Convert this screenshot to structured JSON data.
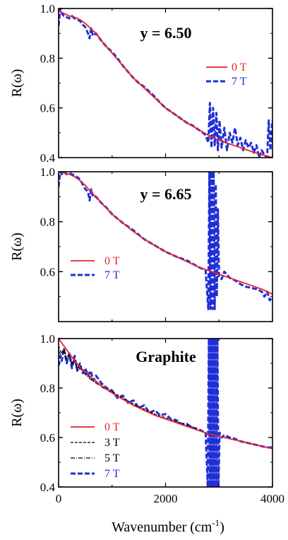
{
  "figure": {
    "xlabel": "Wavenumber (cm",
    "xlabel_sup": "-1",
    "xlabel_close": ")"
  },
  "chart_data": [
    {
      "type": "line",
      "panel_label": "y = 6.50",
      "ylabel": "R(ω)",
      "xlim": [
        0,
        4000
      ],
      "ylim": [
        0.4,
        1.0
      ],
      "yticks": [
        "0.4",
        "0.6",
        "0.8",
        "1.0"
      ],
      "xticks": [],
      "legend_placement": "right",
      "series": [
        {
          "name": "0 T",
          "color": "#e8212b",
          "style": "solid",
          "x": [
            0,
            100,
            200,
            300,
            400,
            500,
            600,
            700,
            800,
            1000,
            1200,
            1400,
            1600,
            1800,
            2000,
            2200,
            2400,
            2600,
            2800,
            3000,
            3200,
            3400,
            3600,
            3800,
            4000
          ],
          "y": [
            0.99,
            0.98,
            0.97,
            0.965,
            0.955,
            0.94,
            0.92,
            0.9,
            0.87,
            0.82,
            0.77,
            0.72,
            0.68,
            0.64,
            0.6,
            0.57,
            0.54,
            0.515,
            0.49,
            0.47,
            0.455,
            0.44,
            0.425,
            0.412,
            0.4
          ]
        },
        {
          "name": "7 T",
          "color": "#1f2fd6",
          "style": "dash",
          "x": [
            0,
            30,
            60,
            100,
            150,
            200,
            250,
            300,
            350,
            400,
            450,
            500,
            550,
            580,
            610,
            640,
            700,
            800,
            900,
            1000,
            1100,
            1200,
            1300,
            1400,
            1500,
            1600,
            1700,
            1800,
            1900,
            2000,
            2100,
            2200,
            2300,
            2400,
            2500,
            2600,
            2700,
            2750,
            2800,
            2830,
            2860,
            2890,
            2920,
            2950,
            2980,
            3010,
            3050,
            3100,
            3150,
            3200,
            3250,
            3300,
            3350,
            3400,
            3450,
            3500,
            3550,
            3600,
            3650,
            3700,
            3750,
            3800,
            3850,
            3900,
            3930,
            3960,
            4000
          ],
          "y": [
            0.93,
            1.0,
            0.98,
            0.97,
            0.965,
            0.96,
            0.97,
            0.96,
            0.955,
            0.95,
            0.935,
            0.925,
            0.9,
            0.88,
            0.92,
            0.89,
            0.9,
            0.87,
            0.845,
            0.825,
            0.8,
            0.77,
            0.745,
            0.72,
            0.7,
            0.685,
            0.665,
            0.645,
            0.62,
            0.6,
            0.585,
            0.57,
            0.555,
            0.54,
            0.53,
            0.515,
            0.5,
            0.49,
            0.46,
            0.62,
            0.44,
            0.6,
            0.45,
            0.58,
            0.43,
            0.55,
            0.44,
            0.52,
            0.43,
            0.5,
            0.46,
            0.52,
            0.45,
            0.48,
            0.43,
            0.47,
            0.44,
            0.46,
            0.42,
            0.45,
            0.4,
            0.43,
            0.41,
            0.4,
            0.55,
            0.43,
            0.55
          ]
        }
      ]
    },
    {
      "type": "line",
      "panel_label": "y = 6.65",
      "ylabel": "R(ω)",
      "xlim": [
        0,
        4000
      ],
      "ylim": [
        0.4,
        1.0
      ],
      "yticks": [
        "0.6",
        "0.8",
        "1.0"
      ],
      "xticks": [],
      "legend_placement": "bottom-left",
      "series": [
        {
          "name": "0 T",
          "color": "#e8212b",
          "style": "solid",
          "x": [
            0,
            100,
            200,
            300,
            400,
            500,
            600,
            700,
            800,
            1000,
            1200,
            1400,
            1600,
            1800,
            2000,
            2200,
            2400,
            2600,
            2800,
            3000,
            3200,
            3400,
            3600,
            3800,
            4000
          ],
          "y": [
            1.0,
            0.995,
            0.99,
            0.98,
            0.965,
            0.945,
            0.92,
            0.9,
            0.875,
            0.83,
            0.795,
            0.76,
            0.73,
            0.705,
            0.68,
            0.66,
            0.64,
            0.62,
            0.605,
            0.59,
            0.575,
            0.56,
            0.545,
            0.53,
            0.51
          ]
        },
        {
          "name": "7 T",
          "color": "#1f2fd6",
          "style": "dash",
          "x": [
            0,
            30,
            60,
            100,
            150,
            200,
            300,
            400,
            450,
            500,
            550,
            580,
            610,
            640,
            700,
            800,
            900,
            1000,
            1200,
            1400,
            1600,
            1800,
            2000,
            2200,
            2400,
            2600,
            2700,
            2750,
            2800,
            2820,
            2840,
            2860,
            2880,
            2900,
            2920,
            2940,
            2960,
            2980,
            3000,
            3050,
            3100,
            3200,
            3300,
            3400,
            3500,
            3600,
            3700,
            3800,
            3850,
            3900,
            3950,
            4000
          ],
          "y": [
            0.94,
            1.0,
            0.99,
            1.0,
            0.99,
            0.995,
            0.985,
            0.97,
            0.95,
            0.93,
            0.92,
            0.885,
            0.93,
            0.9,
            0.9,
            0.875,
            0.855,
            0.83,
            0.795,
            0.765,
            0.73,
            0.705,
            0.68,
            0.66,
            0.645,
            0.62,
            0.61,
            0.605,
            0.45,
            1.0,
            0.45,
            1.0,
            0.45,
            1.0,
            0.45,
            0.95,
            0.5,
            0.85,
            0.58,
            0.57,
            0.6,
            0.575,
            0.565,
            0.55,
            0.54,
            0.535,
            0.53,
            0.52,
            0.5,
            0.52,
            0.485,
            0.5
          ]
        }
      ]
    },
    {
      "type": "line",
      "panel_label": "Graphite",
      "ylabel": "R(ω)",
      "xlim": [
        0,
        4000
      ],
      "ylim": [
        0.4,
        1.0
      ],
      "yticks": [
        "0.4",
        "0.6",
        "0.8",
        "1.0"
      ],
      "xticks": [
        "0",
        "2000",
        "4000"
      ],
      "legend_placement": "bottom-left",
      "series": [
        {
          "name": "0 T",
          "color": "#e8212b",
          "style": "solid",
          "x": [
            0,
            100,
            200,
            300,
            400,
            500,
            600,
            800,
            1000,
            1200,
            1400,
            1600,
            1800,
            2000,
            2200,
            2400,
            2600,
            2800,
            3000,
            3200,
            3400,
            3600,
            3800,
            4000
          ],
          "y": [
            1.0,
            0.97,
            0.94,
            0.91,
            0.885,
            0.865,
            0.845,
            0.81,
            0.78,
            0.755,
            0.73,
            0.71,
            0.69,
            0.675,
            0.66,
            0.645,
            0.63,
            0.615,
            0.605,
            0.595,
            0.585,
            0.575,
            0.565,
            0.555
          ]
        },
        {
          "name": "3 T",
          "color": "#000000",
          "style": "dash-thin",
          "x": [
            0,
            50,
            100,
            150,
            200,
            250,
            300,
            350,
            400,
            500,
            600,
            800,
            1000,
            1200,
            1400,
            1600,
            1800,
            2000,
            2200,
            2400,
            2600
          ],
          "y": [
            0.97,
            0.94,
            0.96,
            0.92,
            0.94,
            0.9,
            0.92,
            0.88,
            0.89,
            0.86,
            0.84,
            0.81,
            0.785,
            0.76,
            0.735,
            0.715,
            0.695,
            0.68,
            0.665,
            0.65,
            0.635
          ]
        },
        {
          "name": "5 T",
          "color": "#000000",
          "style": "dashdot",
          "x": [
            0,
            50,
            100,
            150,
            200,
            250,
            300,
            350,
            400,
            500,
            600,
            800,
            1000,
            1200,
            1400,
            1600,
            1800,
            2000,
            2200,
            2400,
            2600
          ],
          "y": [
            0.95,
            0.93,
            0.95,
            0.91,
            0.93,
            0.89,
            0.91,
            0.87,
            0.88,
            0.855,
            0.835,
            0.805,
            0.78,
            0.755,
            0.73,
            0.71,
            0.69,
            0.675,
            0.66,
            0.645,
            0.63
          ]
        },
        {
          "name": "7 T",
          "color": "#1f2fd6",
          "style": "dash",
          "x": [
            0,
            30,
            60,
            100,
            150,
            200,
            250,
            300,
            350,
            400,
            450,
            500,
            550,
            600,
            650,
            700,
            800,
            900,
            1000,
            1100,
            1200,
            1300,
            1400,
            1500,
            1600,
            1700,
            1800,
            1900,
            2000,
            2100,
            2200,
            2300,
            2400,
            2500,
            2600,
            2700,
            2750,
            2790,
            2810,
            2830,
            2850,
            2870,
            2890,
            2910,
            2930,
            2950,
            2970,
            2990,
            3010,
            3050,
            3100,
            3200,
            3300,
            3400,
            3500,
            3600,
            3700,
            3800,
            3900,
            4000
          ],
          "y": [
            0.89,
            0.93,
            0.91,
            0.96,
            0.9,
            0.94,
            0.88,
            0.93,
            0.87,
            0.9,
            0.86,
            0.88,
            0.85,
            0.87,
            0.83,
            0.85,
            0.82,
            0.8,
            0.79,
            0.76,
            0.77,
            0.74,
            0.75,
            0.72,
            0.73,
            0.7,
            0.71,
            0.69,
            0.695,
            0.675,
            0.67,
            0.655,
            0.655,
            0.64,
            0.635,
            0.625,
            0.62,
            0.4,
            1.0,
            0.4,
            1.0,
            0.4,
            1.0,
            0.4,
            1.0,
            0.4,
            1.0,
            0.4,
            0.62,
            0.6,
            0.61,
            0.6,
            0.595,
            0.585,
            0.58,
            0.575,
            0.57,
            0.565,
            0.56,
            0.56
          ]
        }
      ]
    }
  ]
}
